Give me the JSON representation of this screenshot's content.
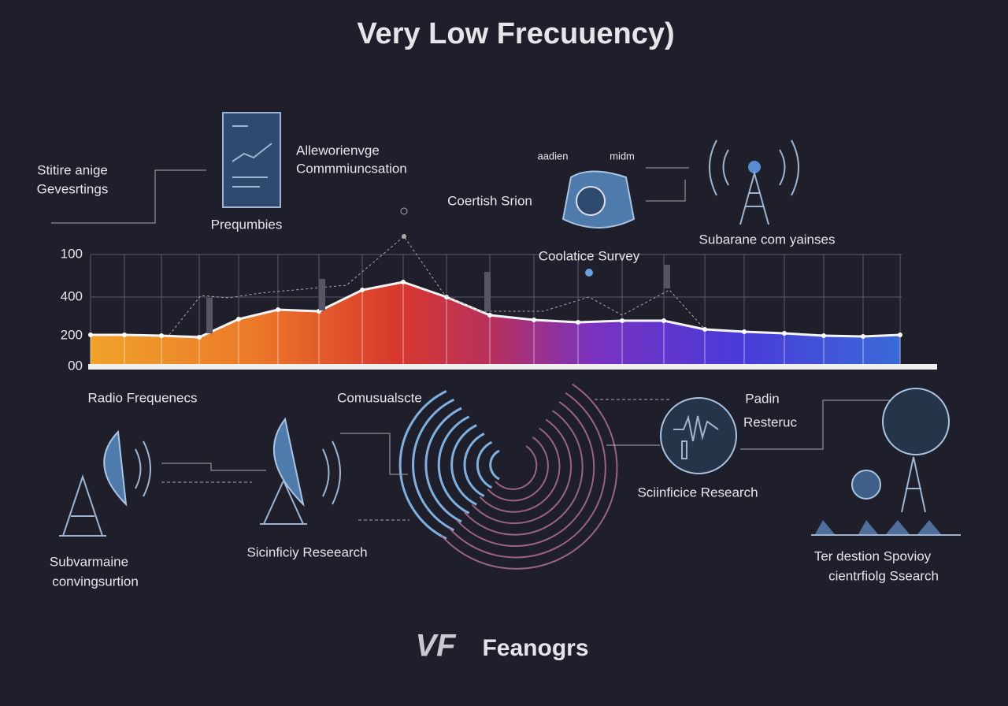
{
  "header": {
    "title": "Very Low Frecuuency)"
  },
  "top_labels": {
    "left": [
      "Stitire anige",
      "Gevesrtings"
    ],
    "document": [
      "Alleworienvge",
      "Commmiuncsation"
    ],
    "document_caption": "Prequmbies",
    "dial_small": [
      "aadien",
      "midm"
    ],
    "dial": "Coertish Srion",
    "tower": "Subarane com yainses",
    "survey": "Coolatice Survey"
  },
  "chart_axis_labels": [
    "100",
    "400",
    "200",
    "00"
  ],
  "bottom_labels": {
    "radio": "Radio Frequenecs",
    "comms": "Comusualscte",
    "research_right": [
      "Padin",
      "Resteruc"
    ],
    "scope": "Sciinficice Research",
    "submarine": [
      "Subvarmaine",
      "convingsurtion"
    ],
    "dish": "Sicinficiy Reseearch",
    "station": [
      "Ter destion Spovioy",
      "cientrfiolg Ssearch"
    ]
  },
  "footer": {
    "logo": "VF",
    "brand": "Feanogrs"
  }
}
